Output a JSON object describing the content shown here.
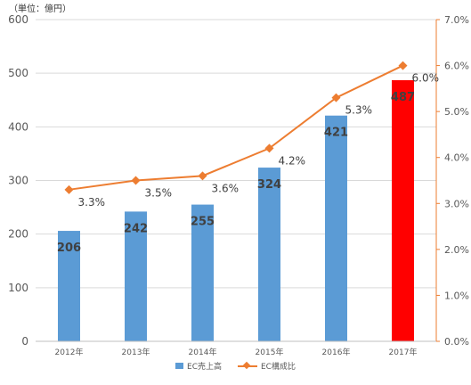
{
  "chart_data": {
    "type": "bar",
    "unit_label": "（単位：億円）",
    "categories": [
      "2012年",
      "2013年",
      "2014年",
      "2015年",
      "2016年",
      "2017年"
    ],
    "series": [
      {
        "name": "EC売上高",
        "type": "bar",
        "axis": "left",
        "values": [
          206,
          242,
          255,
          324,
          421,
          487
        ],
        "value_labels": [
          "206",
          "242",
          "255",
          "324",
          "421",
          "487"
        ],
        "colors": [
          "#5b9bd5",
          "#5b9bd5",
          "#5b9bd5",
          "#5b9bd5",
          "#5b9bd5",
          "#ff0000"
        ]
      },
      {
        "name": "EC構成比",
        "type": "line",
        "axis": "right",
        "values": [
          3.3,
          3.5,
          3.6,
          4.2,
          5.3,
          6.0
        ],
        "value_labels": [
          "3.3%",
          "3.5%",
          "3.6%",
          "4.2%",
          "5.3%",
          "6.0%"
        ],
        "color": "#ed7d31"
      }
    ],
    "y_left": {
      "min": 0,
      "max": 600,
      "ticks": [
        "0",
        "100",
        "200",
        "300",
        "400",
        "500",
        "600"
      ]
    },
    "y_right": {
      "min": 0,
      "max": 7,
      "ticks": [
        "0.0%",
        "1.0%",
        "2.0%",
        "3.0%",
        "4.0%",
        "5.0%",
        "6.0%",
        "7.0%"
      ]
    },
    "grid": true,
    "legend_position": "bottom"
  }
}
